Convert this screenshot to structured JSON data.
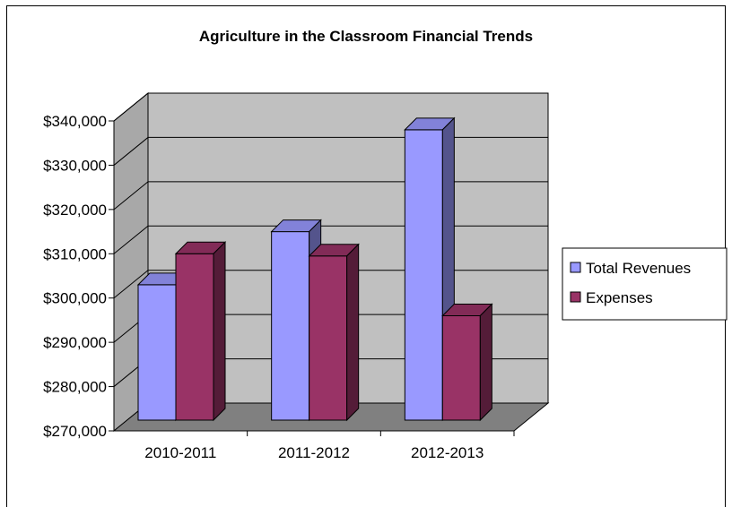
{
  "chart_data": {
    "type": "bar",
    "title": "Agriculture in the Classroom Financial Trends",
    "categories": [
      "2010-2011",
      "2011-2012",
      "2012-2013"
    ],
    "series": [
      {
        "name": "Total Revenues",
        "values": [
          303000,
          315000,
          338000
        ],
        "color": "#9999ff"
      },
      {
        "name": "Expenses",
        "values": [
          310000,
          309500,
          296000
        ],
        "color": "#993366"
      }
    ],
    "ylim": [
      270000,
      340000
    ],
    "y_ticks": [
      "$270,000",
      "$280,000",
      "$290,000",
      "$300,000",
      "$310,000",
      "$320,000",
      "$330,000",
      "$340,000"
    ],
    "grid": true,
    "legend": "right",
    "style": "3d-clustered"
  }
}
